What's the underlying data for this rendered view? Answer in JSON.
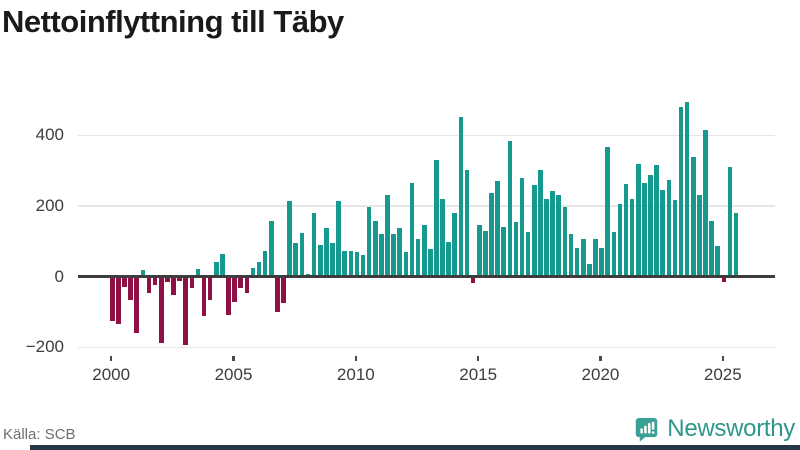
{
  "title": "Nettoinflyttning till Täby",
  "source": "Källa: SCB",
  "branding": {
    "logo_text": "Newsworthy",
    "logo_icon": "bar-chart-speech-bubble",
    "logo_icon_color": "#3aa195",
    "wordmark_color": "#2f968c"
  },
  "chart_data": {
    "type": "bar",
    "title": "Nettoinflyttning till Täby",
    "xlabel": "",
    "ylabel": "",
    "frequency": "quarterly",
    "x_range": "2000Q1–2025Q3",
    "x_tick_years": [
      2000,
      2005,
      2010,
      2015,
      2020,
      2025
    ],
    "y_ticks": [
      400,
      200,
      0,
      -200
    ],
    "y_tick_labels": [
      "400",
      "200",
      "0",
      "−200"
    ],
    "ylim": [
      -230,
      520
    ],
    "grid": "horizontal",
    "legend": "none",
    "colors": {
      "positive": "#16998e",
      "negative": "#8f1045"
    },
    "categories": [
      "2000Q1",
      "2000Q2",
      "2000Q3",
      "2000Q4",
      "2001Q1",
      "2001Q2",
      "2001Q3",
      "2001Q4",
      "2002Q1",
      "2002Q2",
      "2002Q3",
      "2002Q4",
      "2003Q1",
      "2003Q2",
      "2003Q3",
      "2003Q4",
      "2004Q1",
      "2004Q2",
      "2004Q3",
      "2004Q4",
      "2005Q1",
      "2005Q2",
      "2005Q3",
      "2005Q4",
      "2006Q1",
      "2006Q2",
      "2006Q3",
      "2006Q4",
      "2007Q1",
      "2007Q2",
      "2007Q3",
      "2007Q4",
      "2008Q1",
      "2008Q2",
      "2008Q3",
      "2008Q4",
      "2009Q1",
      "2009Q2",
      "2009Q3",
      "2009Q4",
      "2010Q1",
      "2010Q2",
      "2010Q3",
      "2010Q4",
      "2011Q1",
      "2011Q2",
      "2011Q3",
      "2011Q4",
      "2012Q1",
      "2012Q2",
      "2012Q3",
      "2012Q4",
      "2013Q1",
      "2013Q2",
      "2013Q3",
      "2013Q4",
      "2014Q1",
      "2014Q2",
      "2014Q3",
      "2014Q4",
      "2015Q1",
      "2015Q2",
      "2015Q3",
      "2015Q4",
      "2016Q1",
      "2016Q2",
      "2016Q3",
      "2016Q4",
      "2017Q1",
      "2017Q2",
      "2017Q3",
      "2017Q4",
      "2018Q1",
      "2018Q2",
      "2018Q3",
      "2018Q4",
      "2019Q1",
      "2019Q2",
      "2019Q3",
      "2019Q4",
      "2020Q1",
      "2020Q2",
      "2020Q3",
      "2020Q4",
      "2021Q1",
      "2021Q2",
      "2021Q3",
      "2021Q4",
      "2022Q1",
      "2022Q2",
      "2022Q3",
      "2022Q4",
      "2023Q1",
      "2023Q2",
      "2023Q3",
      "2023Q4",
      "2024Q1",
      "2024Q2",
      "2024Q3",
      "2024Q4",
      "2025Q1",
      "2025Q2",
      "2025Q3"
    ],
    "values": [
      -126,
      -133,
      -29,
      -67,
      -158,
      20,
      -46,
      -23,
      -188,
      -14,
      -51,
      -12,
      -193,
      -33,
      21,
      -111,
      -66,
      42,
      64,
      -108,
      -73,
      -32,
      -47,
      26,
      42,
      73,
      158,
      -100,
      -75,
      215,
      94,
      125,
      9,
      179,
      90,
      137,
      94,
      215,
      73,
      73,
      70,
      61,
      196,
      158,
      120,
      230,
      122,
      137,
      69,
      264,
      107,
      146,
      78,
      330,
      220,
      99,
      179,
      451,
      302,
      -19,
      146,
      130,
      236,
      272,
      142,
      385,
      154,
      280,
      127,
      258,
      302,
      219,
      242,
      231,
      198,
      120,
      82,
      108,
      35,
      108,
      82,
      368,
      127,
      207,
      261,
      220,
      320,
      266,
      287,
      315,
      246,
      274,
      218,
      481,
      494,
      340,
      230,
      414,
      157,
      87,
      -16,
      310,
      179
    ]
  }
}
